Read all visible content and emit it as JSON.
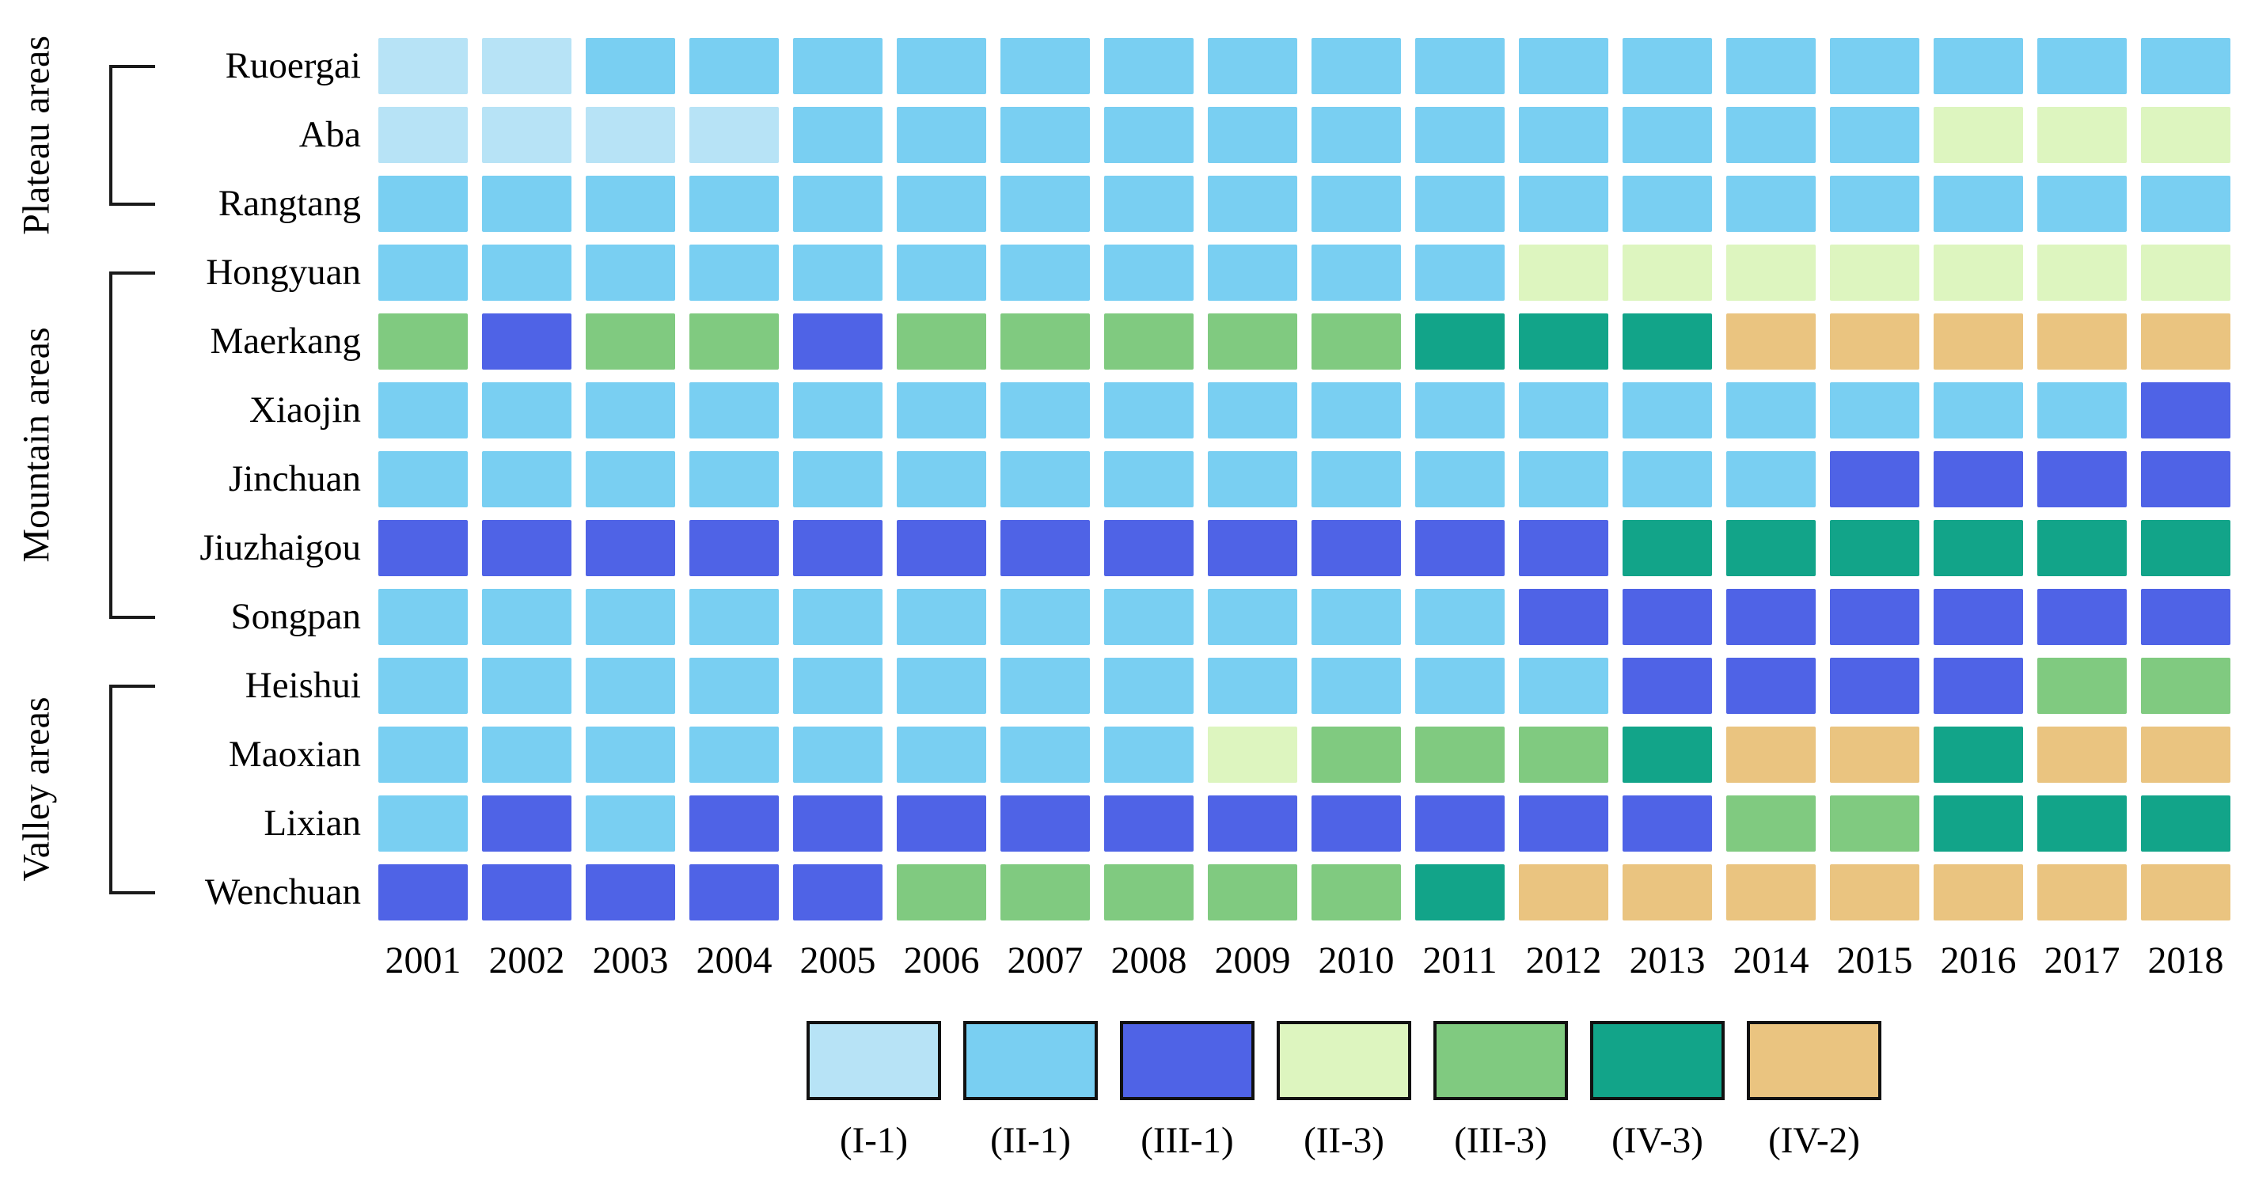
{
  "chart_data": {
    "type": "heatmap",
    "title": "",
    "xlabel": "",
    "ylabel": "",
    "grid": "off",
    "legend_position": "bottom",
    "years": [
      "2001",
      "2002",
      "2003",
      "2004",
      "2005",
      "2006",
      "2007",
      "2008",
      "2009",
      "2010",
      "2011",
      "2012",
      "2013",
      "2014",
      "2015",
      "2016",
      "2017",
      "2018"
    ],
    "rows": [
      "Ruoergai",
      "Aba",
      "Rangtang",
      "Hongyuan",
      "Maerkang",
      "Xiaojin",
      "Jinchuan",
      "Jiuzhaigou",
      "Songpan",
      "Heishui",
      "Maoxian",
      "Lixian",
      "Wenchuan"
    ],
    "groups": [
      {
        "label": "Plateau areas",
        "first_row": 0,
        "last_row": 2
      },
      {
        "label": "Mountain areas",
        "first_row": 3,
        "last_row": 8
      },
      {
        "label": "Valley areas",
        "first_row": 9,
        "last_row": 12
      }
    ],
    "legend": [
      {
        "code": "I-1",
        "label": "(I-1)",
        "color": "#B7E3F6"
      },
      {
        "code": "II-1",
        "label": "(II-1)",
        "color": "#79CFF2"
      },
      {
        "code": "III-1",
        "label": "(III-1)",
        "color": "#4F63E6"
      },
      {
        "code": "II-3",
        "label": "(II-3)",
        "color": "#DDF5BF"
      },
      {
        "code": "III-3",
        "label": "(III-3)",
        "color": "#80CA80"
      },
      {
        "code": "IV-3",
        "label": "(IV-3)",
        "color": "#12A489"
      },
      {
        "code": "IV-2",
        "label": "(IV-2)",
        "color": "#EAC480"
      }
    ],
    "matrix": {
      "Ruoergai": [
        "I-1",
        "I-1",
        "II-1",
        "II-1",
        "II-1",
        "II-1",
        "II-1",
        "II-1",
        "II-1",
        "II-1",
        "II-1",
        "II-1",
        "II-1",
        "II-1",
        "II-1",
        "II-1",
        "II-1",
        "II-1"
      ],
      "Aba": [
        "I-1",
        "I-1",
        "I-1",
        "I-1",
        "II-1",
        "II-1",
        "II-1",
        "II-1",
        "II-1",
        "II-1",
        "II-1",
        "II-1",
        "II-1",
        "II-1",
        "II-1",
        "II-3",
        "II-3",
        "II-3"
      ],
      "Rangtang": [
        "II-1",
        "II-1",
        "II-1",
        "II-1",
        "II-1",
        "II-1",
        "II-1",
        "II-1",
        "II-1",
        "II-1",
        "II-1",
        "II-1",
        "II-1",
        "II-1",
        "II-1",
        "II-1",
        "II-1",
        "II-1"
      ],
      "Hongyuan": [
        "II-1",
        "II-1",
        "II-1",
        "II-1",
        "II-1",
        "II-1",
        "II-1",
        "II-1",
        "II-1",
        "II-1",
        "II-1",
        "II-3",
        "II-3",
        "II-3",
        "II-3",
        "II-3",
        "II-3",
        "II-3"
      ],
      "Maerkang": [
        "III-3",
        "III-1",
        "III-3",
        "III-3",
        "III-1",
        "III-3",
        "III-3",
        "III-3",
        "III-3",
        "III-3",
        "IV-3",
        "IV-3",
        "IV-3",
        "IV-2",
        "IV-2",
        "IV-2",
        "IV-2",
        "IV-2"
      ],
      "Xiaojin": [
        "II-1",
        "II-1",
        "II-1",
        "II-1",
        "II-1",
        "II-1",
        "II-1",
        "II-1",
        "II-1",
        "II-1",
        "II-1",
        "II-1",
        "II-1",
        "II-1",
        "II-1",
        "II-1",
        "II-1",
        "III-1"
      ],
      "Jinchuan": [
        "II-1",
        "II-1",
        "II-1",
        "II-1",
        "II-1",
        "II-1",
        "II-1",
        "II-1",
        "II-1",
        "II-1",
        "II-1",
        "II-1",
        "II-1",
        "II-1",
        "III-1",
        "III-1",
        "III-1",
        "III-1"
      ],
      "Jiuzhaigou": [
        "III-1",
        "III-1",
        "III-1",
        "III-1",
        "III-1",
        "III-1",
        "III-1",
        "III-1",
        "III-1",
        "III-1",
        "III-1",
        "III-1",
        "IV-3",
        "IV-3",
        "IV-3",
        "IV-3",
        "IV-3",
        "IV-3"
      ],
      "Songpan": [
        "II-1",
        "II-1",
        "II-1",
        "II-1",
        "II-1",
        "II-1",
        "II-1",
        "II-1",
        "II-1",
        "II-1",
        "II-1",
        "III-1",
        "III-1",
        "III-1",
        "III-1",
        "III-1",
        "III-1",
        "III-1"
      ],
      "Heishui": [
        "II-1",
        "II-1",
        "II-1",
        "II-1",
        "II-1",
        "II-1",
        "II-1",
        "II-1",
        "II-1",
        "II-1",
        "II-1",
        "II-1",
        "III-1",
        "III-1",
        "III-1",
        "III-1",
        "III-3",
        "III-3"
      ],
      "Maoxian": [
        "II-1",
        "II-1",
        "II-1",
        "II-1",
        "II-1",
        "II-1",
        "II-1",
        "II-1",
        "II-3",
        "III-3",
        "III-3",
        "III-3",
        "IV-3",
        "IV-2",
        "IV-2",
        "IV-3",
        "IV-2",
        "IV-2"
      ],
      "Lixian": [
        "II-1",
        "III-1",
        "II-1",
        "III-1",
        "III-1",
        "III-1",
        "III-1",
        "III-1",
        "III-1",
        "III-1",
        "III-1",
        "III-1",
        "III-1",
        "III-3",
        "III-3",
        "IV-3",
        "IV-3",
        "IV-3"
      ],
      "Wenchuan": [
        "III-1",
        "III-1",
        "III-1",
        "III-1",
        "III-1",
        "III-3",
        "III-3",
        "III-3",
        "III-3",
        "III-3",
        "IV-3",
        "IV-2",
        "IV-2",
        "IV-2",
        "IV-2",
        "IV-2",
        "IV-2",
        "IV-2"
      ]
    }
  }
}
